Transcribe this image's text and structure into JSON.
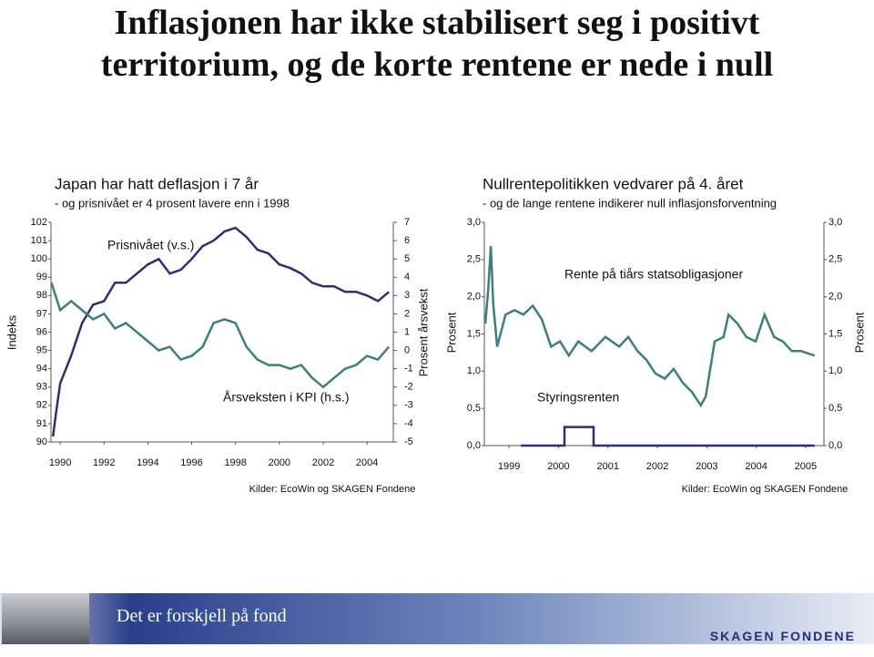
{
  "slide": {
    "title": "Inflasjonen har ikke stabilisert seg i positivt territorium, og de korte rentene er nede i null",
    "footer": "Det er forskjell på fond",
    "logo": "SKAGEN FONDENE"
  },
  "chart_data": [
    {
      "type": "line",
      "title": "Japan har hatt deflasjon i 7 år",
      "subtitle": "- og prisnivået er 4 prosent lavere enn i 1998",
      "y_label": "Indeks",
      "y2_label": "Prosent årsvekst",
      "source": "Kilder: EcoWin og SKAGEN Fondene",
      "xlim": [
        1989.58,
        2005.2
      ],
      "xticks": [
        1990,
        1992,
        1994,
        1996,
        1998,
        2000,
        2002,
        2004
      ],
      "ylim": [
        90,
        102
      ],
      "yticks": [
        90,
        91,
        92,
        93,
        94,
        95,
        96,
        97,
        98,
        99,
        100,
        101,
        102
      ],
      "y2lim": [
        -5,
        7
      ],
      "y2ticks": [
        -5,
        -4,
        -3,
        -2,
        -1,
        0,
        1,
        2,
        3,
        4,
        5,
        6,
        7
      ],
      "series": [
        {
          "name": "Prisnivået (v.s.)",
          "color": "#2a2f7c",
          "x": [
            1989.67,
            1989.8,
            1990,
            1990.5,
            1991,
            1991.5,
            1992,
            1992.5,
            1993,
            1993.5,
            1994,
            1994.5,
            1995,
            1995.5,
            1996,
            1996.5,
            1997,
            1997.5,
            1998,
            1998.5,
            1999,
            1999.5,
            2000,
            2000.5,
            2001,
            2001.5,
            2002,
            2002.5,
            2003,
            2003.5,
            2004,
            2004.5,
            2005
          ],
          "values": [
            90.3,
            91.5,
            93.2,
            94.7,
            96.5,
            97.5,
            97.7,
            98.7,
            98.7,
            99.2,
            99.7,
            100,
            99.2,
            99.4,
            100,
            100.7,
            101,
            101.5,
            101.7,
            101.2,
            100.5,
            100.3,
            99.7,
            99.5,
            99.2,
            98.7,
            98.5,
            98.5,
            98.2,
            98.2,
            98,
            97.7,
            98.2
          ]
        },
        {
          "name": "Årsveksten i KPI (h.s.)",
          "color": "#3b8080",
          "axis": "y2",
          "x": [
            1989.6,
            1990,
            1990.5,
            1991,
            1991.5,
            1992,
            1992.5,
            1993,
            1993.5,
            1994,
            1994.5,
            1995,
            1995.5,
            1996,
            1996.5,
            1997,
            1997.5,
            1998,
            1998.5,
            1999,
            1999.5,
            2000,
            2000.5,
            2001,
            2001.5,
            2002,
            2002.5,
            2003,
            2003.5,
            2004,
            2004.5,
            2005
          ],
          "values": [
            3.7,
            2.2,
            2.7,
            2.2,
            1.7,
            2,
            1.2,
            1.5,
            1,
            0.5,
            0,
            0.2,
            -0.5,
            -0.3,
            0.2,
            1.5,
            1.7,
            1.5,
            0.2,
            -0.5,
            -0.8,
            -0.8,
            -1,
            -0.8,
            -1.5,
            -2,
            -1.5,
            -1,
            -0.8,
            -0.3,
            -0.5,
            0.2
          ]
        }
      ]
    },
    {
      "type": "line",
      "title": "Nullrentepolitikken vedvarer på 4. året",
      "subtitle": "- og de lange rentene indikerer null inflasjonsforventning",
      "y_label": "Prosent",
      "y2_label": "Prosent",
      "source": "Kilder: EcoWin og SKAGEN Fondene",
      "xlim": [
        1998.5,
        2005.37
      ],
      "xticks": [
        1999,
        2000,
        2001,
        2002,
        2003,
        2004,
        2005
      ],
      "ylim": [
        0,
        3
      ],
      "yticks": [
        {
          "value": 0,
          "label": "0,0"
        },
        {
          "value": 0.5,
          "label": "0,5"
        },
        {
          "value": 1,
          "label": "1,0"
        },
        {
          "value": 1.5,
          "label": "1,5"
        },
        {
          "value": 2,
          "label": "2,0"
        },
        {
          "value": 2.5,
          "label": "2,5"
        },
        {
          "value": 3,
          "label": "3,0"
        }
      ],
      "series": [
        {
          "name": "Rente på tiårs statsobligasjoner",
          "color": "#3b8080",
          "x": [
            1998.52,
            1998.58,
            1998.63,
            1998.68,
            1998.76,
            1998.93,
            1999.11,
            1999.29,
            1999.48,
            1999.66,
            1999.85,
            2000.03,
            2000.21,
            2000.4,
            2000.67,
            2000.95,
            2001.23,
            2001.41,
            2001.6,
            2001.78,
            2001.96,
            2002.15,
            2002.33,
            2002.52,
            2002.7,
            2002.88,
            2002.98,
            2003.16,
            2003.34,
            2003.44,
            2003.62,
            2003.8,
            2003.99,
            2004.17,
            2004.36,
            2004.54,
            2004.72,
            2004.91,
            2005.18
          ],
          "values": [
            1.64,
            2.1,
            2.68,
            1.9,
            1.33,
            1.76,
            1.82,
            1.76,
            1.88,
            1.7,
            1.33,
            1.4,
            1.21,
            1.4,
            1.27,
            1.46,
            1.33,
            1.46,
            1.27,
            1.15,
            0.97,
            0.9,
            1.03,
            0.84,
            0.72,
            0.54,
            0.66,
            1.4,
            1.46,
            1.76,
            1.64,
            1.46,
            1.4,
            1.76,
            1.46,
            1.4,
            1.27,
            1.27,
            1.21
          ]
        },
        {
          "name": "Styringsrenten",
          "color": "#2a2f7c",
          "x": [
            1999.24,
            2000.12,
            2000.12,
            2000.71,
            2000.71,
            2005.18
          ],
          "values": [
            0,
            0,
            0.25,
            0.25,
            0,
            0
          ]
        }
      ]
    }
  ]
}
